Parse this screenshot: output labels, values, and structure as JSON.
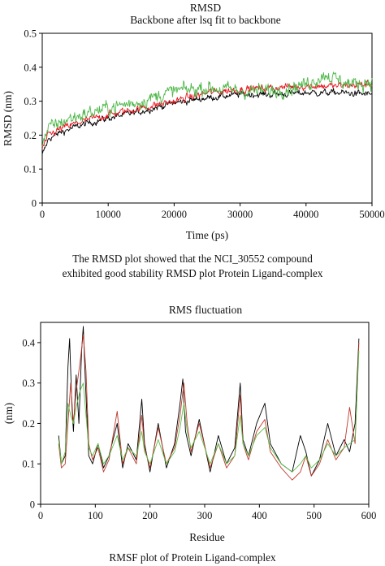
{
  "captions": {
    "rmsd_line1": "The RMSD plot showed that the NCI_30552 compound",
    "rmsd_line2": "exhibited good stability RMSD plot Protein Ligand-complex",
    "rmsf": "RMSF plot of Protein Ligand-complex"
  },
  "chart_data": [
    {
      "type": "line",
      "title": "RMSD",
      "subtitle": "Backbone after lsq fit to backbone",
      "xlabel": "Time (ps)",
      "ylabel": "RMSD (nm)",
      "xlim": [
        0,
        50000
      ],
      "ylim": [
        0,
        0.5
      ],
      "xticks": [
        0,
        10000,
        20000,
        30000,
        40000,
        50000
      ],
      "yticks": [
        0,
        0.1,
        0.2,
        0.3,
        0.4,
        0.5
      ],
      "grid": false,
      "noisy": true,
      "series": [
        {
          "color": "#000000",
          "x": [
            0,
            1000,
            3000,
            6000,
            10000,
            15000,
            20000,
            25000,
            30000,
            35000,
            40000,
            45000,
            50000
          ],
          "values": [
            0.14,
            0.19,
            0.21,
            0.23,
            0.25,
            0.27,
            0.295,
            0.31,
            0.32,
            0.32,
            0.325,
            0.325,
            0.32
          ],
          "noise": 0.008
        },
        {
          "color": "#e8141c",
          "x": [
            0,
            1000,
            3000,
            6000,
            10000,
            15000,
            20000,
            25000,
            30000,
            35000,
            40000,
            45000,
            50000
          ],
          "values": [
            0.16,
            0.2,
            0.22,
            0.24,
            0.26,
            0.28,
            0.3,
            0.325,
            0.335,
            0.34,
            0.345,
            0.345,
            0.35
          ],
          "noise": 0.009
        },
        {
          "color": "#4fb84a",
          "x": [
            0,
            1000,
            3000,
            6000,
            10000,
            15000,
            20000,
            25000,
            30000,
            35000,
            40000,
            43000,
            45000,
            47000,
            50000
          ],
          "values": [
            0.18,
            0.22,
            0.24,
            0.26,
            0.28,
            0.3,
            0.33,
            0.34,
            0.33,
            0.33,
            0.35,
            0.38,
            0.36,
            0.35,
            0.36
          ],
          "noise": 0.017
        }
      ]
    },
    {
      "type": "line",
      "title": "RMS fluctuation",
      "xlabel": "Residue",
      "ylabel": "(nm)",
      "xlim": [
        0,
        600
      ],
      "ylim": [
        0,
        0.45
      ],
      "xticks": [
        0,
        100,
        200,
        300,
        400,
        500,
        600
      ],
      "yticks": [
        0,
        0.1,
        0.2,
        0.3,
        0.4
      ],
      "grid": false,
      "series": [
        {
          "color": "#000000",
          "x": [
            33,
            38,
            45,
            50,
            53,
            57,
            60,
            65,
            70,
            75,
            78,
            82,
            88,
            95,
            105,
            115,
            125,
            140,
            150,
            160,
            175,
            185,
            190,
            200,
            215,
            230,
            245,
            255,
            260,
            265,
            275,
            290,
            310,
            325,
            340,
            355,
            365,
            370,
            380,
            395,
            410,
            420,
            440,
            460,
            475,
            485,
            495,
            510,
            525,
            540,
            555,
            565,
            575,
            582
          ],
          "values": [
            0.17,
            0.1,
            0.12,
            0.34,
            0.41,
            0.25,
            0.18,
            0.32,
            0.2,
            0.38,
            0.44,
            0.3,
            0.12,
            0.1,
            0.15,
            0.09,
            0.12,
            0.2,
            0.09,
            0.15,
            0.11,
            0.26,
            0.15,
            0.08,
            0.2,
            0.09,
            0.15,
            0.25,
            0.31,
            0.18,
            0.12,
            0.21,
            0.08,
            0.17,
            0.1,
            0.14,
            0.3,
            0.16,
            0.12,
            0.2,
            0.25,
            0.15,
            0.1,
            0.08,
            0.17,
            0.13,
            0.07,
            0.11,
            0.2,
            0.12,
            0.16,
            0.13,
            0.2,
            0.41
          ]
        },
        {
          "color": "#c0392b",
          "x": [
            33,
            38,
            45,
            50,
            55,
            60,
            65,
            72,
            78,
            83,
            88,
            95,
            105,
            115,
            125,
            140,
            150,
            160,
            175,
            185,
            190,
            200,
            215,
            230,
            245,
            255,
            262,
            268,
            275,
            290,
            310,
            325,
            340,
            355,
            365,
            370,
            380,
            395,
            410,
            420,
            440,
            460,
            475,
            485,
            495,
            510,
            525,
            540,
            555,
            565,
            575,
            582
          ],
          "values": [
            0.15,
            0.09,
            0.1,
            0.2,
            0.3,
            0.2,
            0.28,
            0.35,
            0.42,
            0.33,
            0.15,
            0.11,
            0.14,
            0.08,
            0.11,
            0.23,
            0.1,
            0.14,
            0.1,
            0.22,
            0.14,
            0.09,
            0.19,
            0.1,
            0.14,
            0.22,
            0.3,
            0.2,
            0.13,
            0.2,
            0.09,
            0.15,
            0.09,
            0.12,
            0.27,
            0.15,
            0.11,
            0.18,
            0.21,
            0.13,
            0.09,
            0.06,
            0.08,
            0.12,
            0.07,
            0.1,
            0.16,
            0.11,
            0.14,
            0.24,
            0.15,
            0.4
          ]
        },
        {
          "color": "#5cc049",
          "x": [
            33,
            38,
            45,
            50,
            55,
            60,
            65,
            72,
            78,
            83,
            88,
            95,
            105,
            115,
            125,
            140,
            150,
            160,
            175,
            185,
            190,
            200,
            215,
            230,
            245,
            255,
            262,
            268,
            275,
            290,
            310,
            325,
            340,
            355,
            365,
            370,
            380,
            395,
            410,
            420,
            440,
            460,
            475,
            485,
            495,
            510,
            525,
            540,
            555,
            565,
            575,
            582
          ],
          "values": [
            0.16,
            0.1,
            0.13,
            0.25,
            0.22,
            0.2,
            0.24,
            0.28,
            0.3,
            0.22,
            0.14,
            0.12,
            0.15,
            0.1,
            0.12,
            0.17,
            0.11,
            0.14,
            0.12,
            0.18,
            0.13,
            0.1,
            0.16,
            0.1,
            0.13,
            0.19,
            0.25,
            0.18,
            0.14,
            0.18,
            0.1,
            0.15,
            0.1,
            0.12,
            0.22,
            0.15,
            0.12,
            0.17,
            0.19,
            0.14,
            0.1,
            0.08,
            0.1,
            0.12,
            0.09,
            0.11,
            0.15,
            0.12,
            0.14,
            0.15,
            0.16,
            0.38
          ]
        }
      ]
    }
  ]
}
